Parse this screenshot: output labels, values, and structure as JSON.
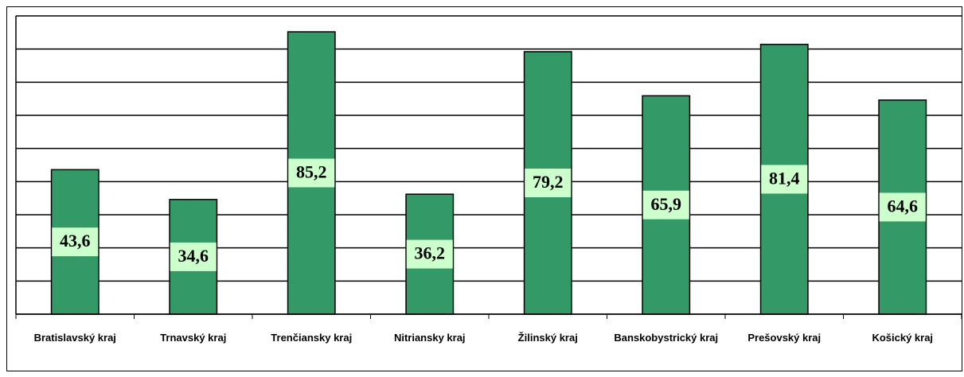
{
  "chart_data": {
    "type": "bar",
    "categories": [
      "Bratislavský kraj",
      "Trnavský kraj",
      "Trenčiansky kraj",
      "Nitriansky kraj",
      "Žilinský kraj",
      "Banskobystrický kraj",
      "Prešovský kraj",
      "Košický kraj"
    ],
    "values": [
      43.6,
      34.6,
      85.2,
      36.2,
      79.2,
      65.9,
      81.4,
      64.6
    ],
    "value_labels": [
      "43,6",
      "34,6",
      "85,2",
      "36,2",
      "79,2",
      "65,9",
      "81,4",
      "64,6"
    ],
    "color": "#339966",
    "ylim": [
      0,
      90
    ],
    "yticks": [
      0,
      10,
      20,
      30,
      40,
      50,
      60,
      70,
      80,
      90
    ],
    "grid": true
  }
}
